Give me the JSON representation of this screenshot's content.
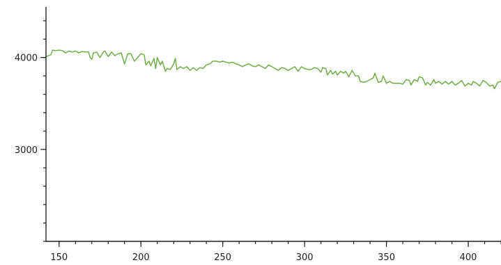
{
  "chart_data": {
    "type": "line",
    "title": "",
    "xlabel": "",
    "ylabel": "",
    "xlim": [
      142,
      420
    ],
    "ylim": [
      2000,
      4550
    ],
    "grid": false,
    "x_major_ticks": [
      150,
      200,
      250,
      300,
      350,
      400
    ],
    "x_minor_step": 10,
    "y_major_ticks": [
      3000,
      4000
    ],
    "y_minor_step": 200,
    "series": [
      {
        "color": "#70ad47",
        "points": [
          [
            142,
            4010
          ],
          [
            145,
            4030
          ],
          [
            146,
            4080
          ],
          [
            148,
            4075
          ],
          [
            150,
            4080
          ],
          [
            152,
            4075
          ],
          [
            154,
            4050
          ],
          [
            156,
            4070
          ],
          [
            158,
            4060
          ],
          [
            160,
            4070
          ],
          [
            162,
            4050
          ],
          [
            164,
            4065
          ],
          [
            166,
            4060
          ],
          [
            168,
            4060
          ],
          [
            169,
            4000
          ],
          [
            170,
            3980
          ],
          [
            171,
            4050
          ],
          [
            173,
            4060
          ],
          [
            175,
            4000
          ],
          [
            177,
            4060
          ],
          [
            178,
            4070
          ],
          [
            180,
            4010
          ],
          [
            182,
            4060
          ],
          [
            184,
            4020
          ],
          [
            186,
            4040
          ],
          [
            188,
            4050
          ],
          [
            190,
            3930
          ],
          [
            192,
            4040
          ],
          [
            194,
            4040
          ],
          [
            196,
            3960
          ],
          [
            198,
            4000
          ],
          [
            200,
            4040
          ],
          [
            202,
            4030
          ],
          [
            203,
            3920
          ],
          [
            205,
            3960
          ],
          [
            206,
            3910
          ],
          [
            208,
            3990
          ],
          [
            209,
            3880
          ],
          [
            210,
            4000
          ],
          [
            212,
            3920
          ],
          [
            213,
            3960
          ],
          [
            215,
            3850
          ],
          [
            216,
            3880
          ],
          [
            218,
            3870
          ],
          [
            220,
            3930
          ],
          [
            221,
            3990
          ],
          [
            222,
            3870
          ],
          [
            224,
            3900
          ],
          [
            226,
            3880
          ],
          [
            228,
            3900
          ],
          [
            230,
            3860
          ],
          [
            232,
            3890
          ],
          [
            234,
            3860
          ],
          [
            236,
            3890
          ],
          [
            238,
            3880
          ],
          [
            240,
            3920
          ],
          [
            242,
            3930
          ],
          [
            244,
            3960
          ],
          [
            246,
            3960
          ],
          [
            248,
            3950
          ],
          [
            250,
            3960
          ],
          [
            252,
            3950
          ],
          [
            254,
            3940
          ],
          [
            256,
            3950
          ],
          [
            258,
            3930
          ],
          [
            260,
            3920
          ],
          [
            262,
            3900
          ],
          [
            264,
            3920
          ],
          [
            266,
            3930
          ],
          [
            268,
            3910
          ],
          [
            270,
            3900
          ],
          [
            272,
            3920
          ],
          [
            274,
            3900
          ],
          [
            276,
            3880
          ],
          [
            278,
            3920
          ],
          [
            280,
            3900
          ],
          [
            282,
            3880
          ],
          [
            284,
            3860
          ],
          [
            286,
            3890
          ],
          [
            288,
            3880
          ],
          [
            290,
            3860
          ],
          [
            292,
            3880
          ],
          [
            294,
            3900
          ],
          [
            296,
            3850
          ],
          [
            298,
            3900
          ],
          [
            300,
            3880
          ],
          [
            302,
            3870
          ],
          [
            304,
            3870
          ],
          [
            306,
            3890
          ],
          [
            308,
            3880
          ],
          [
            310,
            3840
          ],
          [
            311,
            3890
          ],
          [
            313,
            3880
          ],
          [
            314,
            3810
          ],
          [
            316,
            3860
          ],
          [
            317,
            3820
          ],
          [
            319,
            3850
          ],
          [
            320,
            3810
          ],
          [
            322,
            3850
          ],
          [
            324,
            3830
          ],
          [
            325,
            3850
          ],
          [
            327,
            3790
          ],
          [
            329,
            3860
          ],
          [
            331,
            3800
          ],
          [
            333,
            3800
          ],
          [
            334,
            3740
          ],
          [
            336,
            3730
          ],
          [
            338,
            3740
          ],
          [
            340,
            3760
          ],
          [
            342,
            3780
          ],
          [
            343,
            3830
          ],
          [
            345,
            3730
          ],
          [
            347,
            3740
          ],
          [
            348,
            3800
          ],
          [
            350,
            3720
          ],
          [
            352,
            3740
          ],
          [
            354,
            3720
          ],
          [
            356,
            3720
          ],
          [
            358,
            3720
          ],
          [
            360,
            3710
          ],
          [
            362,
            3760
          ],
          [
            364,
            3750
          ],
          [
            365,
            3700
          ],
          [
            367,
            3760
          ],
          [
            369,
            3740
          ],
          [
            370,
            3790
          ],
          [
            372,
            3780
          ],
          [
            374,
            3700
          ],
          [
            375,
            3730
          ],
          [
            377,
            3700
          ],
          [
            379,
            3760
          ],
          [
            380,
            3720
          ],
          [
            382,
            3740
          ],
          [
            384,
            3710
          ],
          [
            386,
            3740
          ],
          [
            388,
            3710
          ],
          [
            390,
            3740
          ],
          [
            392,
            3700
          ],
          [
            394,
            3720
          ],
          [
            396,
            3750
          ],
          [
            398,
            3690
          ],
          [
            400,
            3720
          ],
          [
            402,
            3700
          ],
          [
            403,
            3740
          ],
          [
            405,
            3720
          ],
          [
            407,
            3690
          ],
          [
            409,
            3750
          ],
          [
            411,
            3730
          ],
          [
            413,
            3690
          ],
          [
            415,
            3700
          ],
          [
            416,
            3660
          ],
          [
            418,
            3730
          ],
          [
            420,
            3740
          ]
        ]
      }
    ]
  }
}
